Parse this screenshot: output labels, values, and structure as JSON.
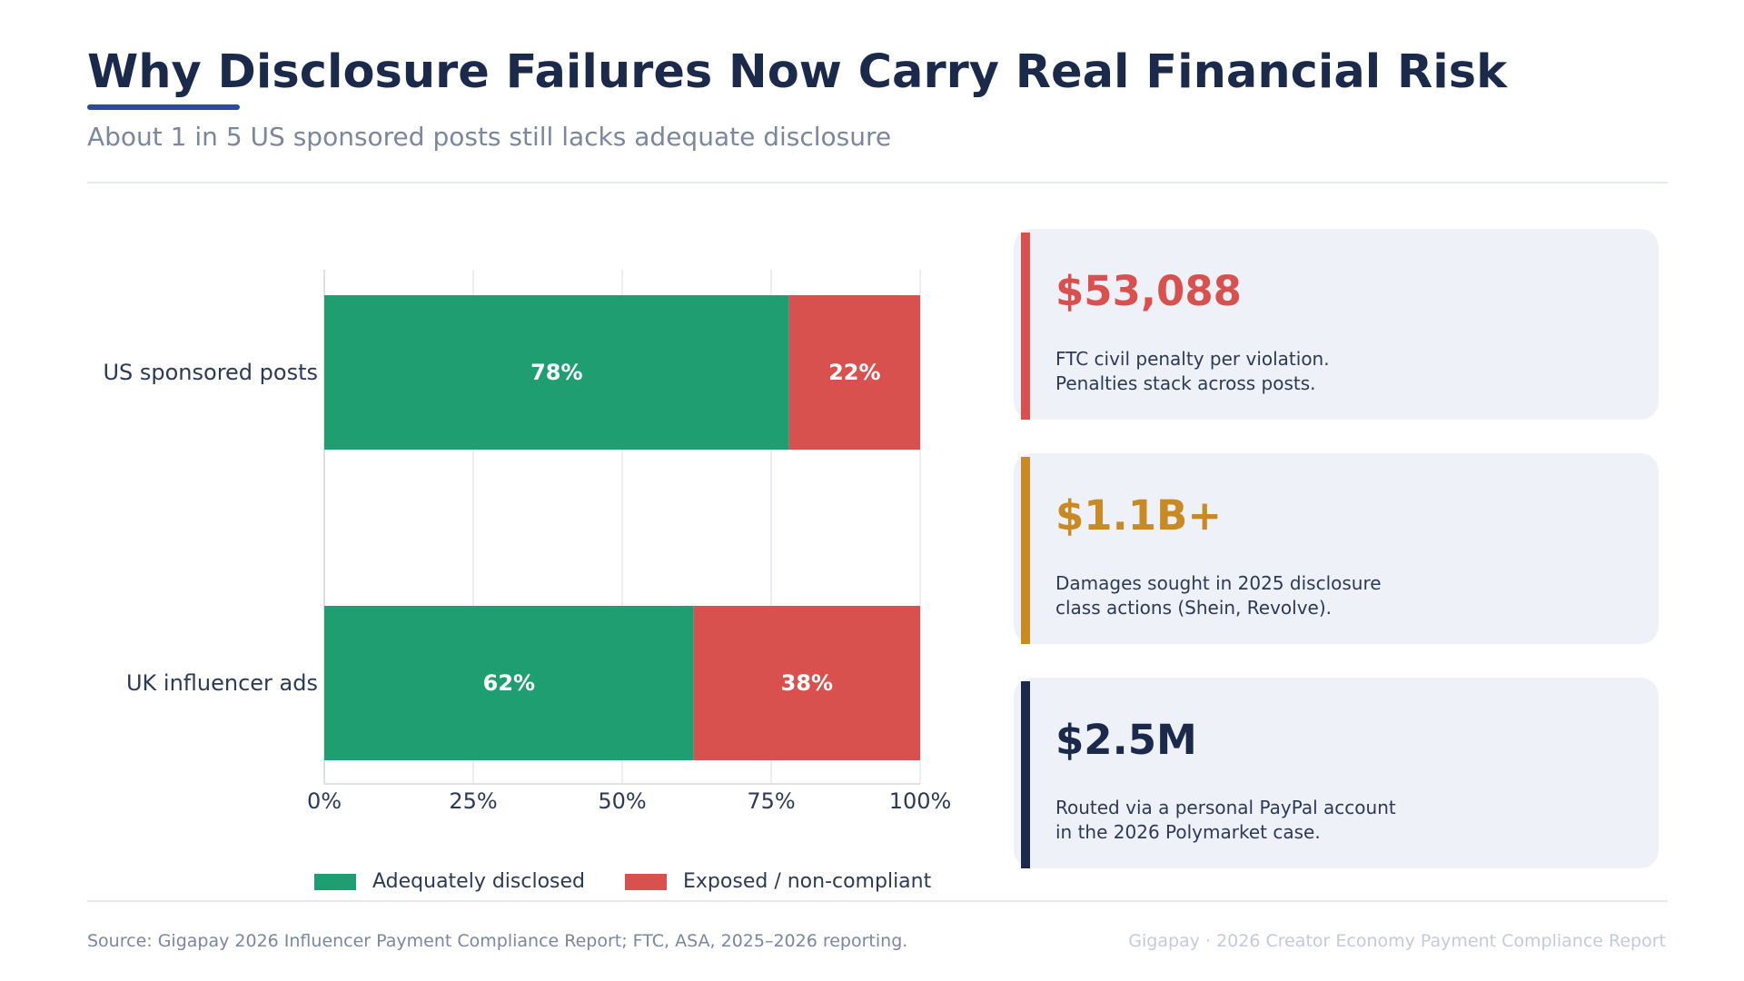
{
  "header": {
    "title": "Why Disclosure Failures Now Carry Real Financial Risk",
    "subtitle": "About 1 in 5 US sponsored posts still lacks adequate disclosure"
  },
  "colors": {
    "disclosed": "#1f9e72",
    "exposed": "#d9514e",
    "amber": "#c98a24",
    "navy": "#1b2a4a"
  },
  "chart_data": {
    "type": "bar",
    "orientation": "horizontal",
    "stacked": true,
    "categories": [
      "US sponsored posts",
      "UK influencer ads"
    ],
    "series": [
      {
        "name": "Adequately disclosed",
        "values": [
          78,
          62
        ],
        "color": "#1f9e72"
      },
      {
        "name": "Exposed / non-compliant",
        "values": [
          22,
          38
        ],
        "color": "#d9514e"
      }
    ],
    "data_labels": [
      [
        "78%",
        "62%"
      ],
      [
        "22%",
        "38%"
      ]
    ],
    "xlim": [
      0,
      100
    ],
    "x_ticks": [
      "0%",
      "25%",
      "50%",
      "75%",
      "100%"
    ],
    "grid": true,
    "legend": "bottom"
  },
  "legend": {
    "items": [
      {
        "label": "Adequately disclosed",
        "color": "#1f9e72"
      },
      {
        "label": "Exposed / non-compliant",
        "color": "#d9514e"
      }
    ]
  },
  "cards": [
    {
      "value": "$53,088",
      "lines": [
        "FTC civil penalty per violation.",
        "Penalties stack across posts."
      ],
      "color": "#d9514e"
    },
    {
      "value": "$1.1B+",
      "lines": [
        "Damages sought in 2025 disclosure",
        "class actions (Shein, Revolve)."
      ],
      "color": "#c98a24"
    },
    {
      "value": "$2.5M",
      "lines": [
        "Routed via a personal PayPal account",
        "in the 2026 Polymarket case."
      ],
      "color": "#1b2a4a"
    }
  ],
  "footer": {
    "source": "Source: Gigapay 2026 Influencer Payment Compliance Report; FTC, ASA, 2025–2026 reporting.",
    "brand": "Gigapay  ·  2026 Creator Economy Payment Compliance Report"
  }
}
